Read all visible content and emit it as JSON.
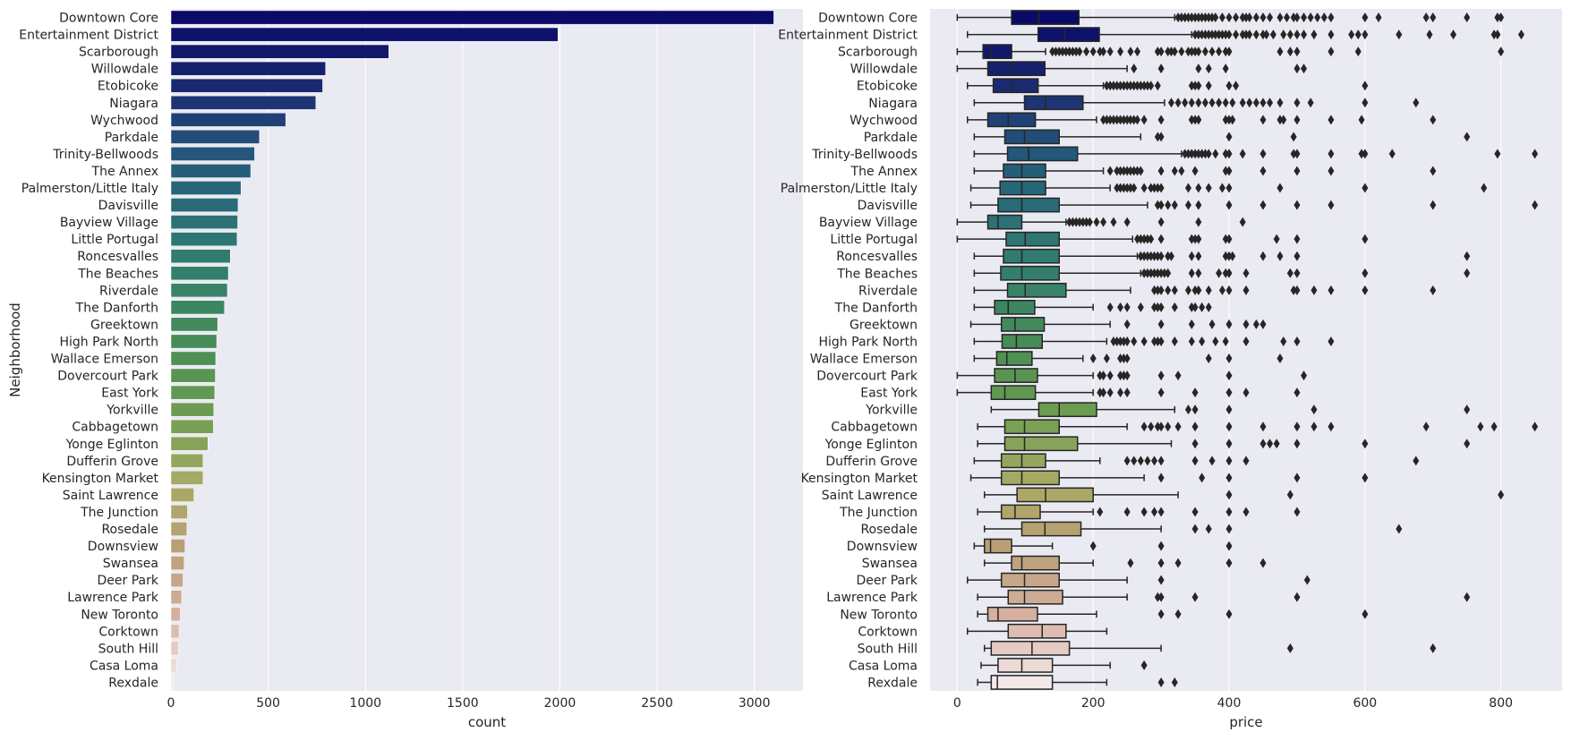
{
  "chart_data": [
    {
      "type": "bar",
      "orientation": "horizontal",
      "xlabel": "count",
      "ylabel": "Neighborhood",
      "xlim": [
        0,
        3250
      ],
      "xticks": [
        0,
        500,
        1000,
        1500,
        2000,
        2500,
        3000
      ],
      "grid": true,
      "categories": [
        "Downtown Core",
        "Entertainment District",
        "Scarborough",
        "Willowdale",
        "Etobicoke",
        "Niagara",
        "Wychwood",
        "Parkdale",
        "Trinity-Bellwoods",
        "The Annex",
        "Palmerston/Little Italy",
        "Davisville",
        "Bayview Village",
        "Little Portugal",
        "Roncesvalles",
        "The Beaches",
        "Riverdale",
        "The Danforth",
        "Greektown",
        "High Park North",
        "Wallace Emerson",
        "Dovercourt Park",
        "East York",
        "Yorkville",
        "Cabbagetown",
        "Yonge Eglinton",
        "Dufferin Grove",
        "Kensington Market",
        "Saint Lawrence",
        "The Junction",
        "Rosedale",
        "Downsview",
        "Swansea",
        "Deer Park",
        "Lawrence Park",
        "New Toronto",
        "Corktown",
        "South Hill",
        "Casa Loma",
        "Rexdale"
      ],
      "values": [
        3100,
        1990,
        1120,
        795,
        780,
        745,
        590,
        455,
        430,
        410,
        360,
        345,
        343,
        340,
        305,
        295,
        290,
        275,
        240,
        235,
        230,
        228,
        225,
        220,
        218,
        190,
        165,
        165,
        118,
        85,
        82,
        72,
        68,
        62,
        55,
        48,
        42,
        38,
        28,
        12
      ]
    },
    {
      "type": "boxplot",
      "orientation": "horizontal",
      "xlabel": "price",
      "ylabel": "",
      "xlim": [
        -40,
        890
      ],
      "xticks": [
        0,
        200,
        400,
        600,
        800
      ],
      "grid": true,
      "palette": "gist_earth_r",
      "boxes": [
        {
          "name": "Downtown Core",
          "whislo": 0,
          "q1": 80,
          "med": 120,
          "q3": 179,
          "whishi": 320,
          "fliers": [
            325,
            330,
            335,
            340,
            345,
            350,
            355,
            360,
            365,
            370,
            375,
            380,
            390,
            400,
            410,
            420,
            425,
            430,
            440,
            450,
            460,
            475,
            485,
            495,
            500,
            510,
            520,
            530,
            540,
            550,
            600,
            620,
            690,
            700,
            750,
            795,
            800
          ]
        },
        {
          "name": "Entertainment District",
          "whislo": 15,
          "q1": 119,
          "med": 158,
          "q3": 209,
          "whishi": 345,
          "fliers": [
            350,
            355,
            360,
            365,
            370,
            375,
            380,
            385,
            390,
            395,
            400,
            410,
            420,
            425,
            430,
            440,
            450,
            455,
            465,
            480,
            490,
            500,
            510,
            525,
            550,
            580,
            590,
            600,
            650,
            695,
            730,
            790,
            795,
            830
          ]
        },
        {
          "name": "Scarborough",
          "whislo": 0,
          "q1": 38,
          "med": 50,
          "q3": 80,
          "whishi": 130,
          "fliers": [
            140,
            145,
            150,
            155,
            160,
            165,
            170,
            175,
            180,
            190,
            200,
            210,
            215,
            225,
            240,
            255,
            265,
            295,
            300,
            310,
            315,
            320,
            330,
            340,
            345,
            350,
            355,
            365,
            375,
            385,
            395,
            400,
            475,
            490,
            500,
            550,
            590,
            800
          ]
        },
        {
          "name": "Willowdale",
          "whislo": 0,
          "q1": 45,
          "med": 79,
          "q3": 129,
          "whishi": 250,
          "fliers": [
            260,
            300,
            355,
            370,
            395,
            500,
            510
          ]
        },
        {
          "name": "Etobicoke",
          "whislo": 15,
          "q1": 53,
          "med": 80,
          "q3": 119,
          "whishi": 215,
          "fliers": [
            220,
            225,
            230,
            235,
            240,
            245,
            250,
            255,
            260,
            265,
            270,
            275,
            280,
            285,
            295,
            345,
            350,
            355,
            370,
            400,
            410,
            600
          ]
        },
        {
          "name": "Niagara",
          "whislo": 25,
          "q1": 99,
          "med": 130,
          "q3": 185,
          "whishi": 305,
          "fliers": [
            315,
            325,
            335,
            345,
            355,
            365,
            375,
            385,
            395,
            405,
            420,
            430,
            440,
            450,
            460,
            475,
            500,
            520,
            600,
            675
          ]
        },
        {
          "name": "Wychwood",
          "whislo": 15,
          "q1": 45,
          "med": 75,
          "q3": 115,
          "whishi": 205,
          "fliers": [
            215,
            220,
            225,
            230,
            235,
            240,
            245,
            250,
            255,
            260,
            265,
            275,
            300,
            345,
            350,
            355,
            395,
            400,
            405,
            450,
            475,
            480,
            500,
            550,
            595,
            700
          ]
        },
        {
          "name": "Parkdale",
          "whislo": 25,
          "q1": 70,
          "med": 99,
          "q3": 150,
          "whishi": 270,
          "fliers": [
            295,
            300,
            400,
            495,
            750
          ]
        },
        {
          "name": "Trinity-Bellwoods",
          "whislo": 25,
          "q1": 74,
          "med": 105,
          "q3": 177,
          "whishi": 330,
          "fliers": [
            335,
            340,
            345,
            350,
            355,
            360,
            365,
            370,
            380,
            395,
            400,
            420,
            450,
            495,
            500,
            550,
            595,
            600,
            640,
            795,
            850
          ]
        },
        {
          "name": "The Annex",
          "whislo": 25,
          "q1": 68,
          "med": 95,
          "q3": 130,
          "whishi": 215,
          "fliers": [
            225,
            235,
            240,
            245,
            250,
            255,
            260,
            265,
            270,
            300,
            320,
            330,
            350,
            395,
            400,
            450,
            500,
            550,
            700
          ]
        },
        {
          "name": "Palmerston/Little Italy",
          "whislo": 20,
          "q1": 63,
          "med": 95,
          "q3": 130,
          "whishi": 225,
          "fliers": [
            235,
            240,
            245,
            250,
            255,
            260,
            275,
            285,
            290,
            295,
            300,
            340,
            355,
            370,
            390,
            400,
            475,
            600,
            775
          ]
        },
        {
          "name": "Davisville",
          "whislo": 20,
          "q1": 60,
          "med": 95,
          "q3": 150,
          "whishi": 280,
          "fliers": [
            295,
            300,
            310,
            320,
            340,
            355,
            400,
            450,
            500,
            550,
            700,
            850
          ]
        },
        {
          "name": "Bayview Village",
          "whislo": 0,
          "q1": 45,
          "med": 60,
          "q3": 95,
          "whishi": 160,
          "fliers": [
            165,
            170,
            175,
            180,
            185,
            190,
            195,
            205,
            215,
            230,
            250,
            300,
            355,
            420
          ]
        },
        {
          "name": "Little Portugal",
          "whislo": 0,
          "q1": 72,
          "med": 100,
          "q3": 150,
          "whishi": 258,
          "fliers": [
            265,
            270,
            275,
            280,
            285,
            300,
            345,
            350,
            355,
            395,
            400,
            470,
            500,
            600
          ]
        },
        {
          "name": "Roncesvalles",
          "whislo": 25,
          "q1": 68,
          "med": 95,
          "q3": 150,
          "whishi": 265,
          "fliers": [
            270,
            275,
            280,
            285,
            290,
            295,
            300,
            310,
            315,
            345,
            355,
            395,
            400,
            405,
            450,
            475,
            500,
            750
          ]
        },
        {
          "name": "The Beaches",
          "whislo": 25,
          "q1": 64,
          "med": 95,
          "q3": 150,
          "whishi": 270,
          "fliers": [
            275,
            280,
            285,
            290,
            295,
            300,
            305,
            310,
            345,
            355,
            385,
            395,
            400,
            425,
            490,
            500,
            600,
            750
          ]
        },
        {
          "name": "Riverdale",
          "whislo": 25,
          "q1": 74,
          "med": 100,
          "q3": 160,
          "whishi": 255,
          "fliers": [
            290,
            295,
            300,
            310,
            320,
            340,
            350,
            355,
            370,
            390,
            400,
            425,
            495,
            500,
            525,
            550,
            600,
            700
          ]
        },
        {
          "name": "The Danforth",
          "whislo": 25,
          "q1": 55,
          "med": 75,
          "q3": 114,
          "whishi": 200,
          "fliers": [
            225,
            240,
            250,
            270,
            290,
            295,
            300,
            320,
            345,
            350,
            360,
            370
          ]
        },
        {
          "name": "Greektown",
          "whislo": 20,
          "q1": 65,
          "med": 85,
          "q3": 128,
          "whishi": 225,
          "fliers": [
            250,
            300,
            345,
            375,
            400,
            425,
            440,
            450
          ]
        },
        {
          "name": "High Park North",
          "whislo": 25,
          "q1": 66,
          "med": 87,
          "q3": 125,
          "whishi": 220,
          "fliers": [
            230,
            235,
            240,
            245,
            250,
            260,
            275,
            290,
            295,
            300,
            320,
            345,
            360,
            380,
            395,
            425,
            480,
            500,
            550
          ]
        },
        {
          "name": "Wallace Emerson",
          "whislo": 25,
          "q1": 58,
          "med": 73,
          "q3": 110,
          "whishi": 185,
          "fliers": [
            200,
            220,
            240,
            245,
            250,
            370,
            400,
            475
          ]
        },
        {
          "name": "Dovercourt Park",
          "whislo": 0,
          "q1": 55,
          "med": 85,
          "q3": 118,
          "whishi": 200,
          "fliers": [
            210,
            215,
            225,
            240,
            245,
            250,
            300,
            325,
            400,
            510
          ]
        },
        {
          "name": "East York",
          "whislo": 0,
          "q1": 50,
          "med": 70,
          "q3": 115,
          "whishi": 200,
          "fliers": [
            210,
            215,
            225,
            240,
            250,
            300,
            350,
            400,
            425,
            500
          ]
        },
        {
          "name": "Yorkville",
          "whislo": 50,
          "q1": 120,
          "med": 150,
          "q3": 205,
          "whishi": 320,
          "fliers": [
            340,
            350,
            400,
            525,
            750
          ]
        },
        {
          "name": "Cabbagetown",
          "whislo": 30,
          "q1": 70,
          "med": 99,
          "q3": 150,
          "whishi": 250,
          "fliers": [
            275,
            285,
            295,
            300,
            310,
            325,
            350,
            400,
            450,
            500,
            525,
            550,
            690,
            770,
            790,
            850
          ]
        },
        {
          "name": "Yonge Eglinton",
          "whislo": 30,
          "q1": 70,
          "med": 99,
          "q3": 177,
          "whishi": 315,
          "fliers": [
            350,
            400,
            450,
            460,
            470,
            500,
            600,
            750
          ]
        },
        {
          "name": "Dufferin Grove",
          "whislo": 25,
          "q1": 65,
          "med": 95,
          "q3": 130,
          "whishi": 210,
          "fliers": [
            250,
            260,
            270,
            280,
            290,
            300,
            350,
            375,
            400,
            425,
            675
          ]
        },
        {
          "name": "Kensington Market",
          "whislo": 20,
          "q1": 65,
          "med": 95,
          "q3": 150,
          "whishi": 275,
          "fliers": [
            300,
            360,
            400,
            500,
            600
          ]
        },
        {
          "name": "Saint Lawrence",
          "whislo": 40,
          "q1": 88,
          "med": 130,
          "q3": 200,
          "whishi": 325,
          "fliers": [
            400,
            490,
            800
          ]
        },
        {
          "name": "The Junction",
          "whislo": 30,
          "q1": 65,
          "med": 85,
          "q3": 122,
          "whishi": 200,
          "fliers": [
            210,
            250,
            275,
            290,
            300,
            350,
            400,
            425,
            500
          ]
        },
        {
          "name": "Rosedale",
          "whislo": 40,
          "q1": 95,
          "med": 129,
          "q3": 182,
          "whishi": 300,
          "fliers": [
            350,
            370,
            400,
            650
          ]
        },
        {
          "name": "Downsview",
          "whislo": 25,
          "q1": 40,
          "med": 49,
          "q3": 80,
          "whishi": 140,
          "fliers": [
            200,
            300,
            400
          ]
        },
        {
          "name": "Swansea",
          "whislo": 40,
          "q1": 80,
          "med": 95,
          "q3": 150,
          "whishi": 200,
          "fliers": [
            255,
            300,
            325,
            400,
            450
          ]
        },
        {
          "name": "Deer Park",
          "whislo": 15,
          "q1": 65,
          "med": 99,
          "q3": 150,
          "whishi": 250,
          "fliers": [
            300,
            515
          ]
        },
        {
          "name": "Lawrence Park",
          "whislo": 30,
          "q1": 75,
          "med": 99,
          "q3": 155,
          "whishi": 250,
          "fliers": [
            295,
            300,
            350,
            500,
            750
          ]
        },
        {
          "name": "New Toronto",
          "whislo": 30,
          "q1": 45,
          "med": 60,
          "q3": 118,
          "whishi": 205,
          "fliers": [
            300,
            325,
            400,
            600
          ]
        },
        {
          "name": "Corktown",
          "whislo": 15,
          "q1": 75,
          "med": 125,
          "q3": 160,
          "whishi": 220,
          "fliers": []
        },
        {
          "name": "South Hill",
          "whislo": 40,
          "q1": 50,
          "med": 110,
          "q3": 165,
          "whishi": 300,
          "fliers": [
            490,
            700
          ]
        },
        {
          "name": "Casa Loma",
          "whislo": 35,
          "q1": 60,
          "med": 95,
          "q3": 140,
          "whishi": 225,
          "fliers": [
            275
          ]
        },
        {
          "name": "Rexdale",
          "whislo": 30,
          "q1": 50,
          "med": 59,
          "q3": 140,
          "whishi": 220,
          "fliers": [
            300,
            320
          ]
        }
      ]
    }
  ],
  "colors": {
    "axes_bg": "#eaeaf2",
    "grid": "#ffffff",
    "text": "#262626",
    "edge": "#3f3f3f",
    "flier": "#262626"
  }
}
